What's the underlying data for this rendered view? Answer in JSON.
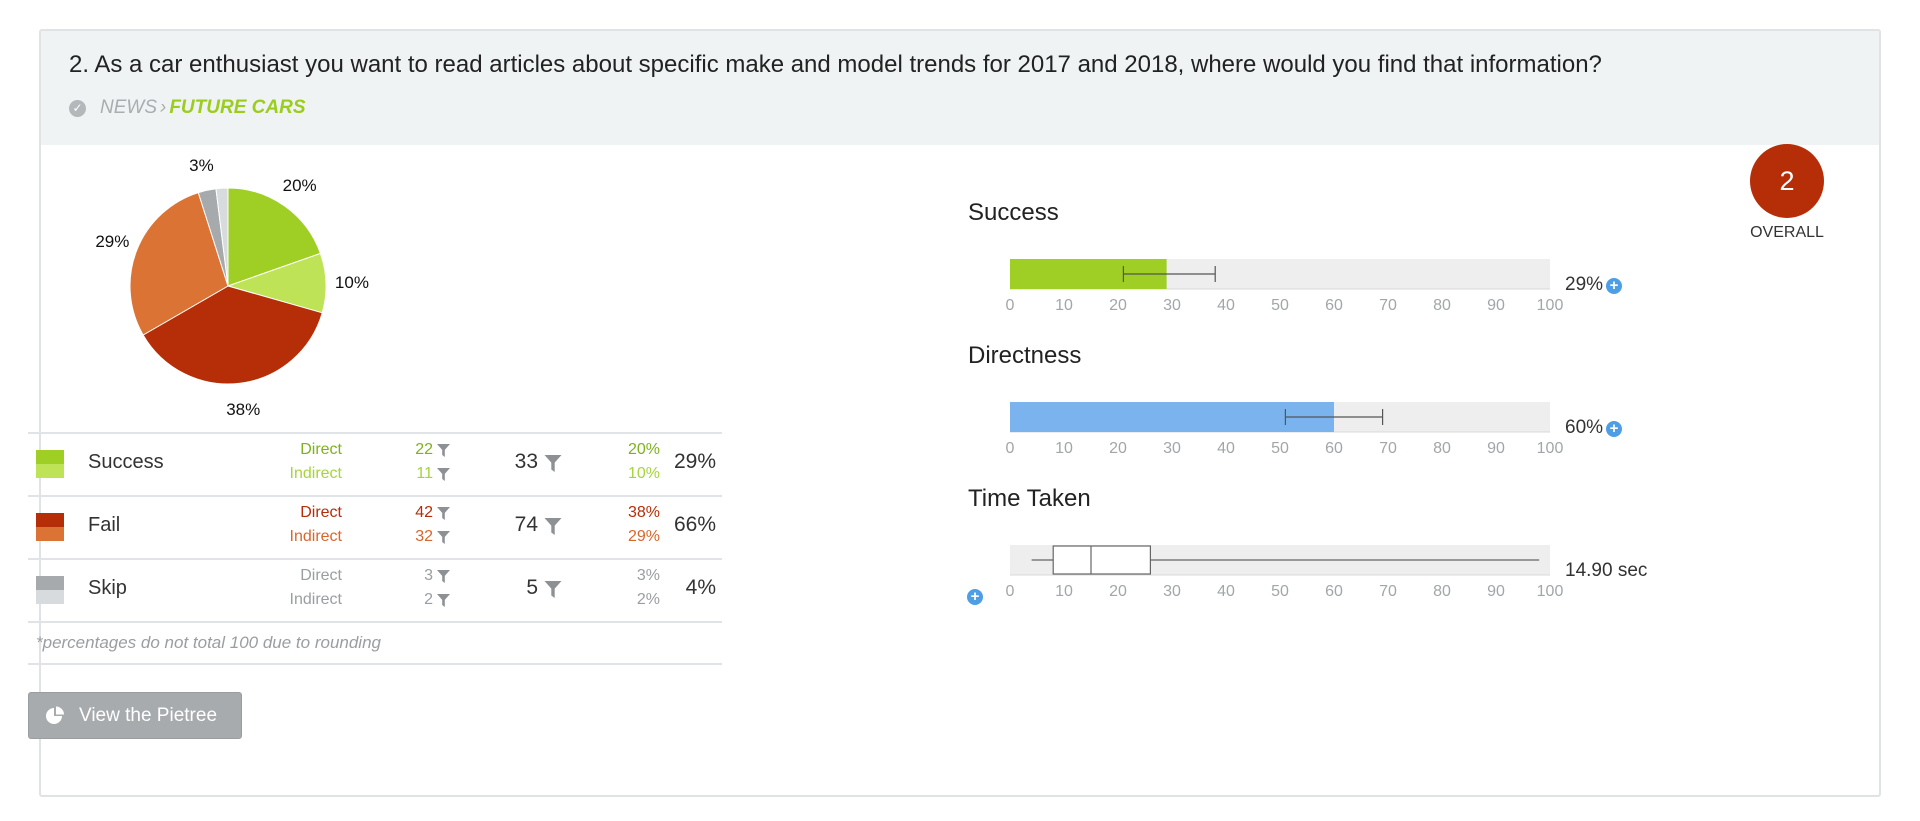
{
  "question": "2. As a car enthusiast you want to read articles about specific make and model trends for 2017 and 2018, where would you find that information?",
  "breadcrumb": {
    "parent": "NEWS",
    "separator": "›",
    "current": "FUTURE CARS"
  },
  "pie": {
    "slices": [
      {
        "name": "Success Direct",
        "value": 20,
        "label": "20%",
        "color": "#9fce24"
      },
      {
        "name": "Success Indirect",
        "value": 10,
        "label": "10%",
        "color": "#bfe356"
      },
      {
        "name": "Fail Direct",
        "value": 38,
        "label": "38%",
        "color": "#b52e08"
      },
      {
        "name": "Fail Indirect",
        "value": 29,
        "label": "29%",
        "color": "#db7334"
      },
      {
        "name": "Skip Direct",
        "value": 3,
        "label": "3%",
        "color": "#a6aaad"
      },
      {
        "name": "Skip Indirect",
        "value": 2,
        "label": "",
        "color": "#d8dbdd"
      }
    ]
  },
  "stats": [
    {
      "name": "Success",
      "swatch": [
        "#9fce24",
        "#bfe356"
      ],
      "direct": {
        "label": "Direct",
        "count": "22",
        "pct": "20%",
        "color": "#7fb21a"
      },
      "indirect": {
        "label": "Indirect",
        "count": "11",
        "pct": "10%",
        "color": "#a7d43a"
      },
      "total": "33",
      "percent": "29%"
    },
    {
      "name": "Fail",
      "swatch": [
        "#b52e08",
        "#db7334"
      ],
      "direct": {
        "label": "Direct",
        "count": "42",
        "pct": "38%",
        "color": "#b52e08"
      },
      "indirect": {
        "label": "Indirect",
        "count": "32",
        "pct": "29%",
        "color": "#d9662a"
      },
      "total": "74",
      "percent": "66%"
    },
    {
      "name": "Skip",
      "swatch": [
        "#a6aaad",
        "#d8dbdd"
      ],
      "direct": {
        "label": "Direct",
        "count": "3",
        "pct": "3%",
        "color": "#9a9ea1"
      },
      "indirect": {
        "label": "Indirect",
        "count": "2",
        "pct": "2%",
        "color": "#9a9ea1"
      },
      "total": "5",
      "percent": "4%"
    }
  ],
  "footnote": "*percentages do not total 100 due to rounding",
  "pietree_button": "View the Pietree",
  "metrics": {
    "ticks": [
      "0",
      "10",
      "20",
      "30",
      "40",
      "50",
      "60",
      "70",
      "80",
      "90",
      "100"
    ],
    "success": {
      "title": "Success",
      "value": 29,
      "ci": [
        21,
        38
      ],
      "color": "#9fce24",
      "display": "29%"
    },
    "directness": {
      "title": "Directness",
      "value": 60,
      "ci": [
        51,
        69
      ],
      "color": "#7ab3ee",
      "display": "60%"
    },
    "time": {
      "title": "Time Taken",
      "min": 4,
      "q1": 8,
      "median": 15,
      "q3": 26,
      "max": 98,
      "display": "14.90 sec"
    }
  },
  "overall": {
    "score": "2",
    "label": "OVERALL",
    "color": "#b52e08"
  }
}
